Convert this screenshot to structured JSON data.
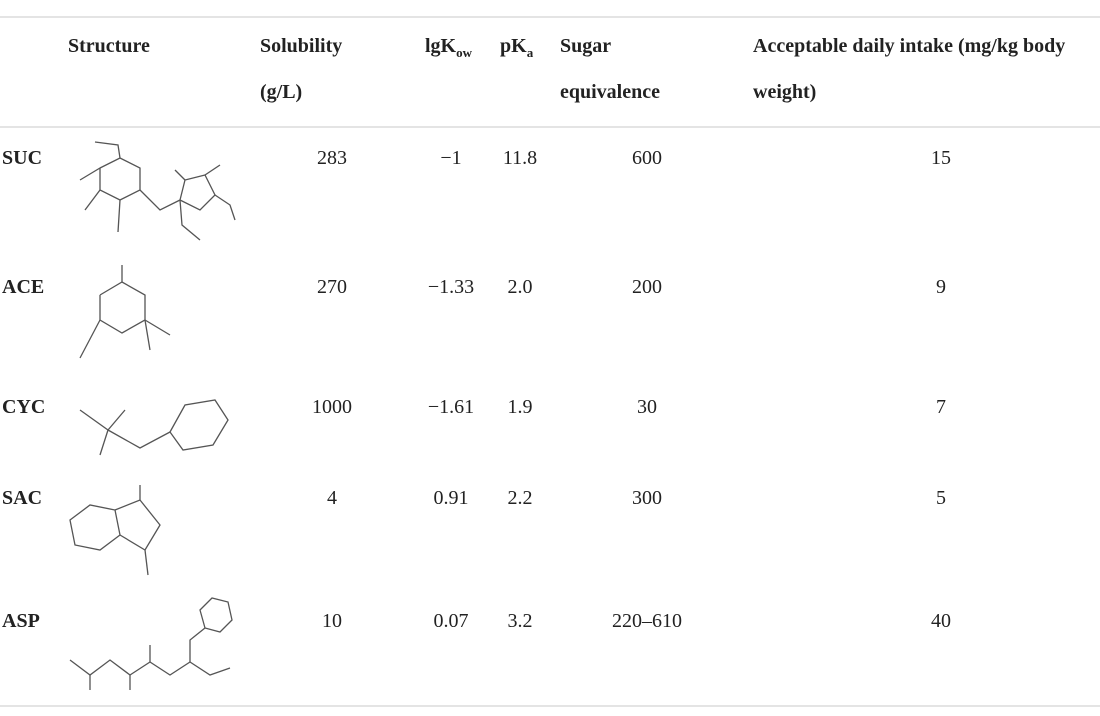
{
  "header": {
    "label": "",
    "structure": "Structure",
    "solubility": "Solubility (g/L)",
    "lgkow": {
      "main": "lgK",
      "sub": "ow"
    },
    "pka": {
      "main": "pK",
      "sub": "a"
    },
    "sugar": "Sugar equivalence",
    "adi": "Acceptable daily intake (mg/kg body weight)"
  },
  "rows": [
    {
      "label": "SUC",
      "solubility": "283",
      "lgkow": "−1",
      "pka": "11.8",
      "sugar": "600",
      "adi": "15"
    },
    {
      "label": "ACE",
      "solubility": "270",
      "lgkow": "−1.33",
      "pka": "2.0",
      "sugar": "200",
      "adi": "9"
    },
    {
      "label": "CYC",
      "solubility": "1000",
      "lgkow": "−1.61",
      "pka": "1.9",
      "sugar": "30",
      "adi": "7"
    },
    {
      "label": "SAC",
      "solubility": "4",
      "lgkow": "0.91",
      "pka": "2.2",
      "sugar": "300",
      "adi": "5"
    },
    {
      "label": "ASP",
      "solubility": "10",
      "lgkow": "0.07",
      "pka": "3.2",
      "sugar": "220–610",
      "adi": "40"
    }
  ]
}
